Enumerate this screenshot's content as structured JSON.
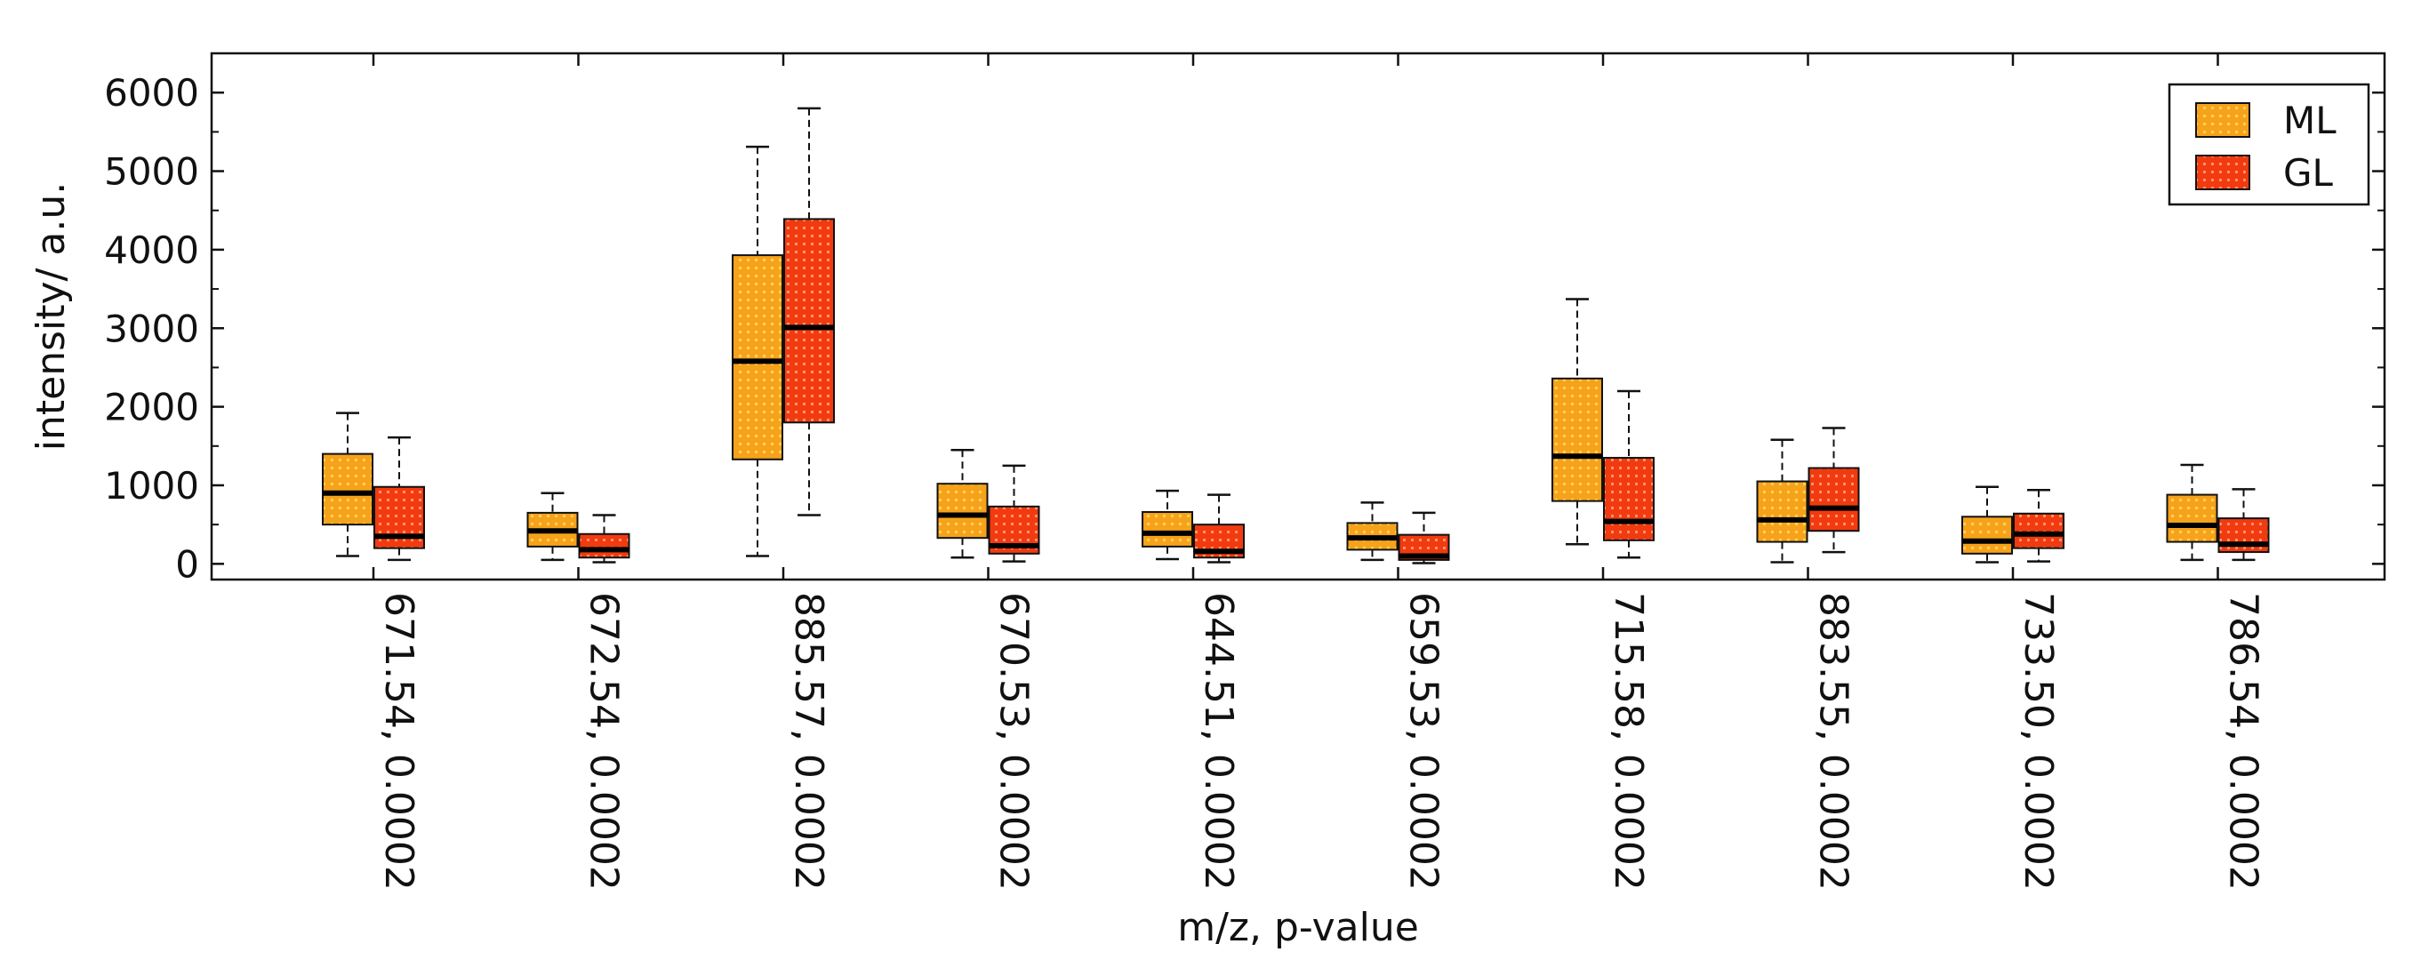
{
  "chart_data": {
    "type": "boxplot",
    "title": "",
    "xlabel": "m/z, p-value",
    "ylabel": "intensity/ a.u.",
    "ylim": [
      -200,
      6500
    ],
    "yticks": [
      0,
      1000,
      2000,
      3000,
      4000,
      5000,
      6000
    ],
    "grid": false,
    "legend_position": "top-right",
    "categories": [
      "671.54, 0.0002",
      "672.54, 0.0002",
      "885.57, 0.0002",
      "670.53, 0.0002",
      "644.51, 0.0002",
      "659.53, 0.0002",
      "715.58, 0.0002",
      "883.55, 0.0002",
      "733.50, 0.0002",
      "786.54, 0.0002"
    ],
    "series": [
      {
        "name": "ML",
        "color": "#F7A21B",
        "dot_color": "#FFD65A",
        "boxes": [
          {
            "min": 100,
            "q1": 500,
            "median": 900,
            "q3": 1400,
            "max": 1920
          },
          {
            "min": 50,
            "q1": 220,
            "median": 420,
            "q3": 650,
            "max": 900
          },
          {
            "min": 100,
            "q1": 1330,
            "median": 2580,
            "q3": 3930,
            "max": 5310
          },
          {
            "min": 80,
            "q1": 330,
            "median": 620,
            "q3": 1020,
            "max": 1450
          },
          {
            "min": 60,
            "q1": 220,
            "median": 390,
            "q3": 660,
            "max": 930
          },
          {
            "min": 50,
            "q1": 180,
            "median": 330,
            "q3": 520,
            "max": 780
          },
          {
            "min": 250,
            "q1": 800,
            "median": 1370,
            "q3": 2360,
            "max": 3370
          },
          {
            "min": 20,
            "q1": 280,
            "median": 560,
            "q3": 1050,
            "max": 1580
          },
          {
            "min": 20,
            "q1": 130,
            "median": 290,
            "q3": 600,
            "max": 980
          },
          {
            "min": 50,
            "q1": 280,
            "median": 490,
            "q3": 880,
            "max": 1260
          }
        ]
      },
      {
        "name": "GL",
        "color": "#F23A10",
        "dot_color": "#FF9A70",
        "boxes": [
          {
            "min": 50,
            "q1": 200,
            "median": 350,
            "q3": 980,
            "max": 1610
          },
          {
            "min": 20,
            "q1": 80,
            "median": 180,
            "q3": 380,
            "max": 620
          },
          {
            "min": 620,
            "q1": 1800,
            "median": 3010,
            "q3": 4390,
            "max": 5800
          },
          {
            "min": 30,
            "q1": 130,
            "median": 230,
            "q3": 730,
            "max": 1250
          },
          {
            "min": 20,
            "q1": 80,
            "median": 160,
            "q3": 500,
            "max": 880
          },
          {
            "min": 10,
            "q1": 50,
            "median": 100,
            "q3": 370,
            "max": 650
          },
          {
            "min": 80,
            "q1": 300,
            "median": 540,
            "q3": 1350,
            "max": 2200
          },
          {
            "min": 150,
            "q1": 420,
            "median": 710,
            "q3": 1220,
            "max": 1730
          },
          {
            "min": 30,
            "q1": 200,
            "median": 380,
            "q3": 640,
            "max": 940
          },
          {
            "min": 50,
            "q1": 150,
            "median": 250,
            "q3": 580,
            "max": 950
          }
        ]
      }
    ]
  }
}
